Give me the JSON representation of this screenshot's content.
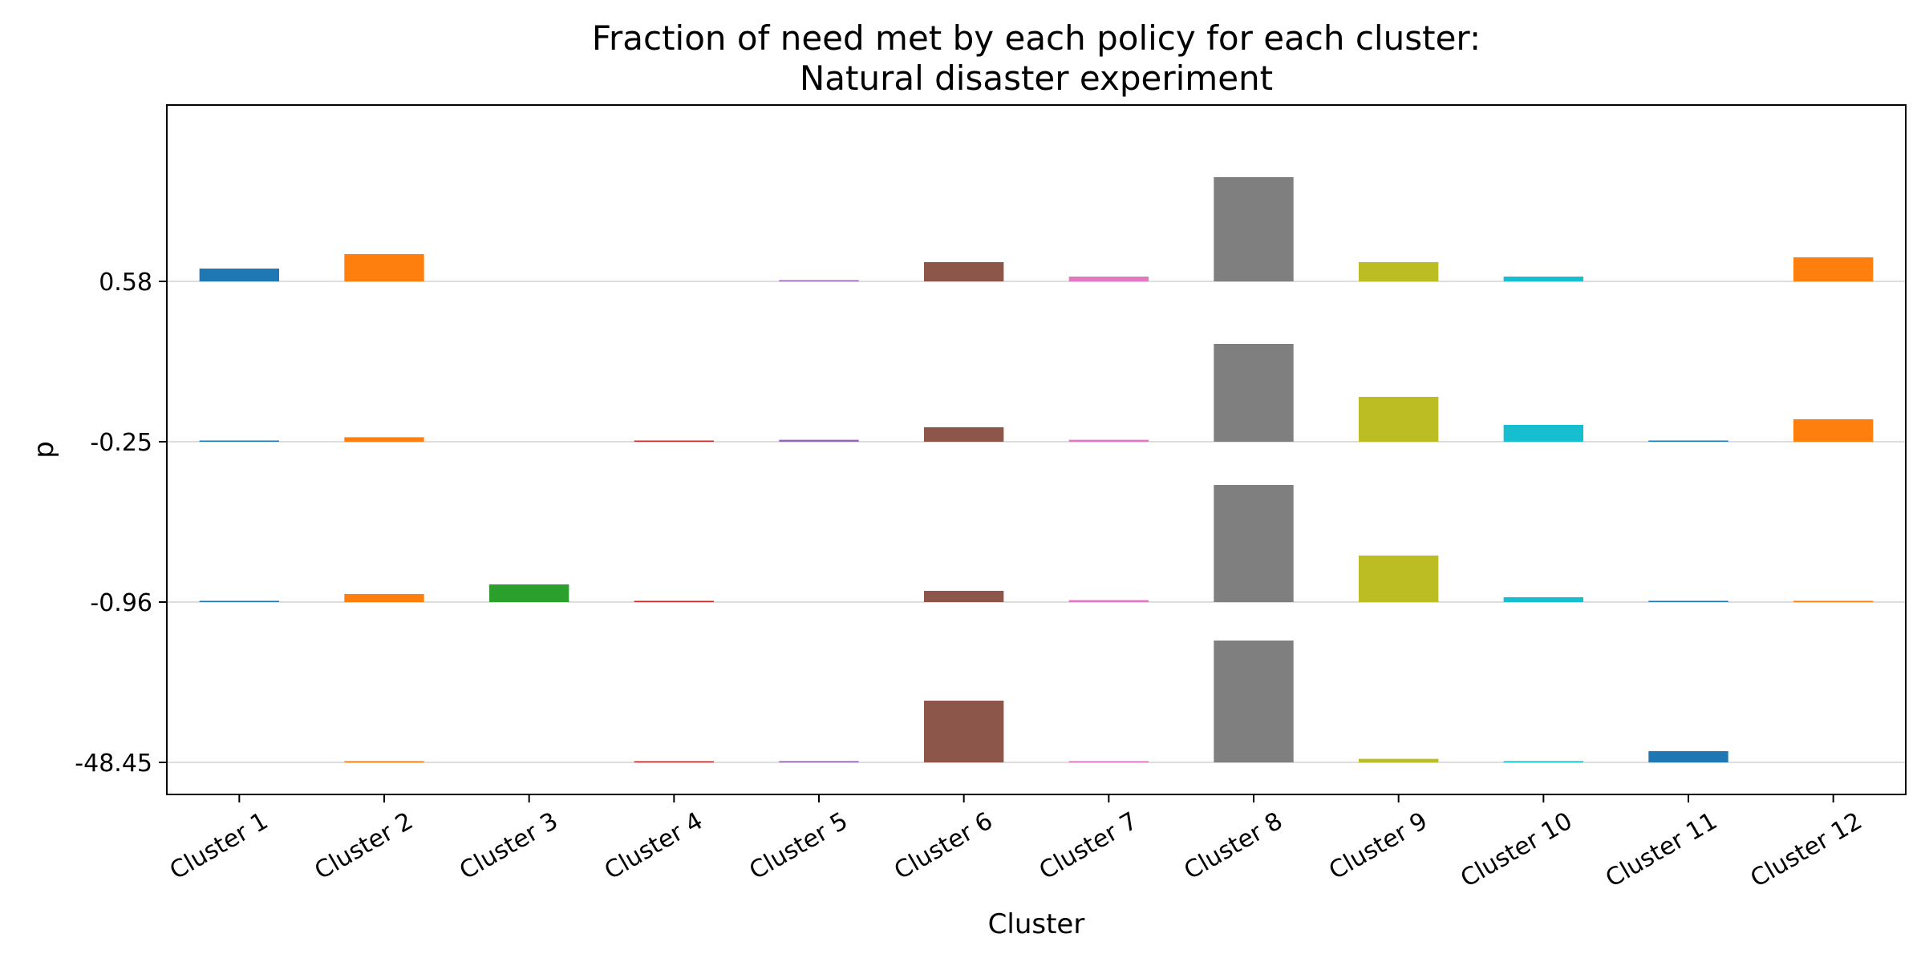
{
  "chart_data": {
    "type": "bar",
    "title_lines": [
      "Fraction of need met by each policy for each cluster:",
      "Natural disaster experiment"
    ],
    "xlabel": "Cluster",
    "ylabel": "p",
    "categories": [
      "Cluster 1",
      "Cluster 2",
      "Cluster 3",
      "Cluster 4",
      "Cluster 5",
      "Cluster 6",
      "Cluster 7",
      "Cluster 8",
      "Cluster 9",
      "Cluster 10",
      "Cluster 11",
      "Cluster 12"
    ],
    "colors": [
      "#1f77b4",
      "#ff7f0e",
      "#2ca02c",
      "#d62728",
      "#9467bd",
      "#8c564b",
      "#e377c2",
      "#7f7f7f",
      "#bcbd22",
      "#17becf",
      "#1f77b4",
      "#ff7f0e"
    ],
    "band_labels": [
      "0.58",
      "-0.25",
      "-0.96",
      "-48.45"
    ],
    "band_scale_note": "each band is a separate baseline; values are bar heights in the band's own units (0-1)",
    "series": [
      {
        "name": "0.58",
        "values": [
          0.08,
          0.17,
          0,
          0,
          0.004,
          0.12,
          0.03,
          0.65,
          0.12,
          0.03,
          0,
          0.15
        ]
      },
      {
        "name": "-0.25",
        "values": [
          0.006,
          0.028,
          0,
          0.004,
          0.012,
          0.09,
          0.012,
          0.61,
          0.28,
          0.105,
          0.004,
          0.14
        ]
      },
      {
        "name": "-0.96",
        "values": [
          0.004,
          0.05,
          0.11,
          0.004,
          0,
          0.07,
          0.012,
          0.73,
          0.29,
          0.03,
          0.004,
          0.004
        ]
      },
      {
        "name": "-48.45",
        "values": [
          0,
          0.008,
          0,
          0.004,
          0.008,
          0.385,
          0.008,
          0.76,
          0.022,
          0.008,
          0.07,
          0
        ]
      }
    ]
  }
}
